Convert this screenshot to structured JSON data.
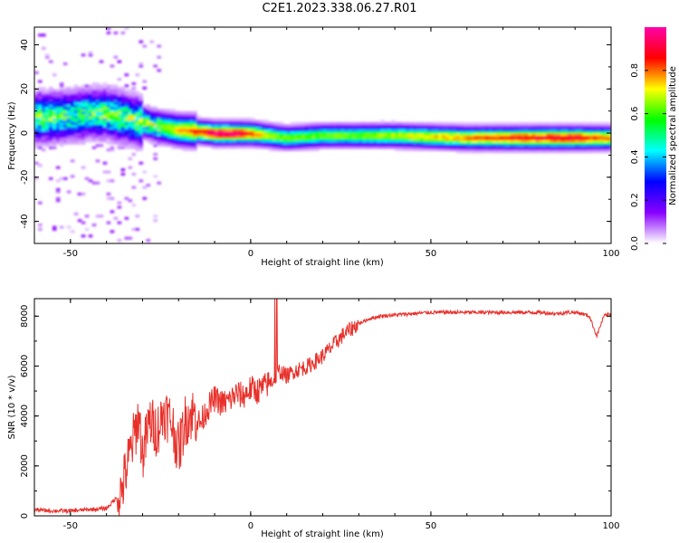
{
  "title": "C2E1.2023.338.06.27.R01",
  "chart_data": [
    {
      "type": "heatmap",
      "xlabel": "Height of straight line (km)",
      "ylabel": "Frequency (Hz)",
      "xlim": [
        -60,
        100
      ],
      "ylim": [
        -50,
        48
      ],
      "x_ticks": [
        "-50",
        "0",
        "50",
        "100"
      ],
      "x_tick_values": [
        -50,
        0,
        50,
        100
      ],
      "y_ticks": [
        "-40",
        "-20",
        "0",
        "20",
        "40"
      ],
      "y_tick_values": [
        -40,
        -20,
        0,
        20,
        40
      ],
      "colorbar": {
        "label": "Normalized spectral amplitude",
        "range": [
          0,
          1
        ],
        "ticks": [
          "0.0",
          "0.2",
          "0.4",
          "0.6",
          "0.8"
        ],
        "tick_values": [
          0.0,
          0.2,
          0.4,
          0.6,
          0.8
        ],
        "colormap": [
          "#ffffff",
          "#8800ff",
          "#0000ff",
          "#00ffff",
          "#00ff00",
          "#ffff00",
          "#ff0000",
          "#ff00aa"
        ]
      },
      "ridge": {
        "x": [
          -60,
          -55,
          -50,
          -45,
          -40,
          -35,
          -30,
          -25,
          -20,
          -15,
          -10,
          -5,
          0,
          5,
          10,
          20,
          30,
          40,
          50,
          60,
          70,
          80,
          90,
          100
        ],
        "frequency": [
          7,
          7.5,
          8,
          9,
          9,
          7,
          5,
          3,
          1.5,
          1,
          0,
          0,
          0,
          -1,
          -2,
          -1,
          -1,
          -1,
          -1.5,
          -2,
          -2,
          -2,
          -2,
          -2
        ],
        "amplitude": [
          0.5,
          0.5,
          0.45,
          0.45,
          0.5,
          0.5,
          0.5,
          0.55,
          0.65,
          0.75,
          0.85,
          0.85,
          0.75,
          0.6,
          0.55,
          0.55,
          0.55,
          0.6,
          0.65,
          0.7,
          0.75,
          0.8,
          0.8,
          0.7
        ]
      }
    },
    {
      "type": "line",
      "xlabel": "Height of straight line (km)",
      "ylabel": "SNR (10 * v/v)",
      "xlim": [
        -60,
        100
      ],
      "ylim": [
        0,
        8700
      ],
      "x_ticks": [
        "-50",
        "0",
        "50",
        "100"
      ],
      "x_tick_values": [
        -50,
        0,
        50,
        100
      ],
      "y_ticks": [
        "0",
        "2000",
        "4000",
        "6000",
        "8000"
      ],
      "y_tick_values": [
        0,
        2000,
        4000,
        6000,
        8000
      ],
      "color": "#e8302a",
      "series": [
        {
          "x": [
            -60,
            -55,
            -50,
            -45,
            -40,
            -36,
            -33,
            -31,
            -30,
            -28,
            -26,
            -24,
            -22,
            -20,
            -18,
            -16,
            -14,
            -12,
            -10,
            -8,
            -6,
            -4,
            -2,
            0,
            2,
            4,
            6,
            8,
            10,
            12,
            14,
            16,
            18,
            20,
            22,
            24,
            26,
            28,
            30,
            33,
            36,
            40,
            45,
            50,
            55,
            60,
            65,
            70,
            75,
            80,
            85,
            88,
            90,
            92,
            94,
            96,
            98,
            100
          ],
          "y": [
            250,
            200,
            200,
            250,
            300,
            900,
            2800,
            4000,
            2400,
            3800,
            3400,
            4200,
            3800,
            2600,
            3900,
            4100,
            3700,
            4300,
            4700,
            4500,
            4600,
            4900,
            4800,
            5100,
            5000,
            5200,
            5400,
            5800,
            5600,
            5800,
            5900,
            6000,
            6200,
            6400,
            6700,
            7000,
            7300,
            7500,
            7700,
            7900,
            8000,
            8050,
            8100,
            8150,
            8150,
            8150,
            8150,
            8150,
            8150,
            8150,
            8100,
            8150,
            8150,
            8100,
            8000,
            7200,
            8000,
            8100
          ]
        }
      ]
    }
  ]
}
